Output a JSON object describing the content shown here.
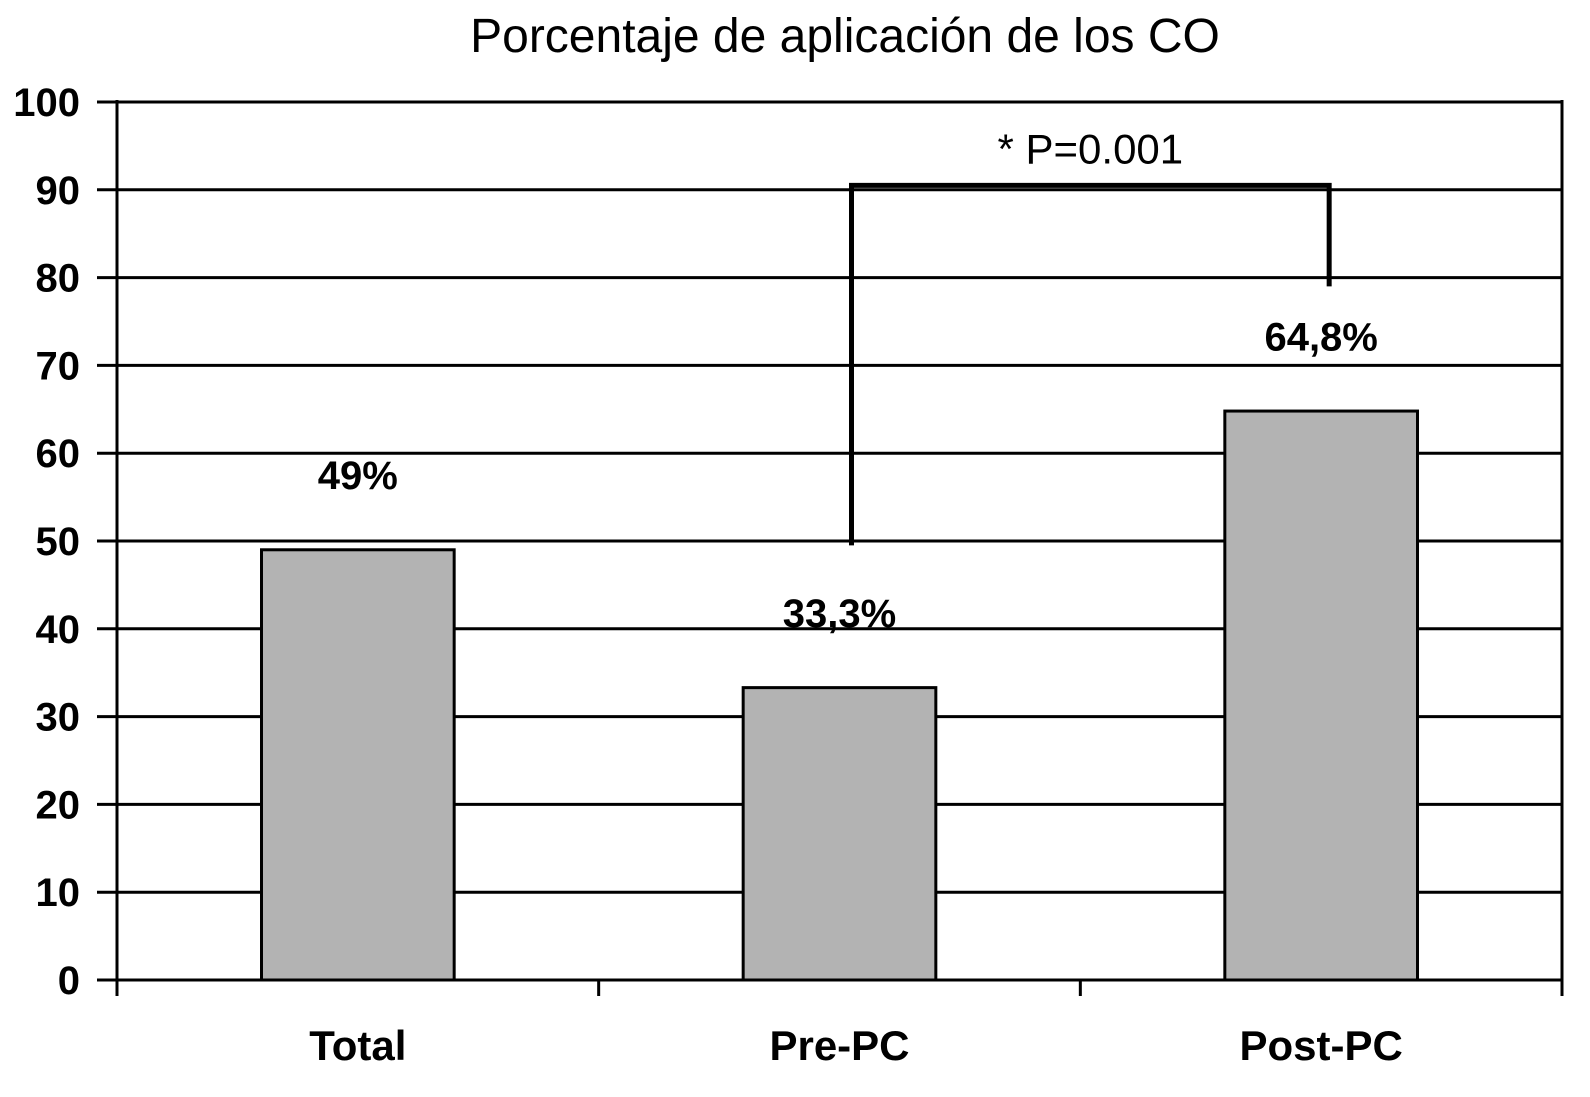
{
  "chart_data": {
    "type": "bar",
    "title": "Porcentaje de aplicación de los CO",
    "categories": [
      "Total",
      "Pre-PC",
      "Post-PC"
    ],
    "values": [
      49,
      33.3,
      64.8
    ],
    "data_labels": [
      "49%",
      "33,3%",
      "64,8%"
    ],
    "y_ticks": [
      "0",
      "10",
      "20",
      "30",
      "40",
      "50",
      "60",
      "70",
      "80",
      "90",
      "100"
    ],
    "ylim": [
      0,
      100
    ],
    "xlabel": "",
    "ylabel": "",
    "grid": true,
    "colors": {
      "bar": "#b3b3b3",
      "outline": "#000000",
      "grid": "#000000"
    },
    "annotation": {
      "text": "* P=0.001",
      "from_category": "Pre-PC",
      "to_category": "Post-PC",
      "bracket_top": 90.5,
      "left_end": 49.5,
      "right_end": 79
    }
  }
}
